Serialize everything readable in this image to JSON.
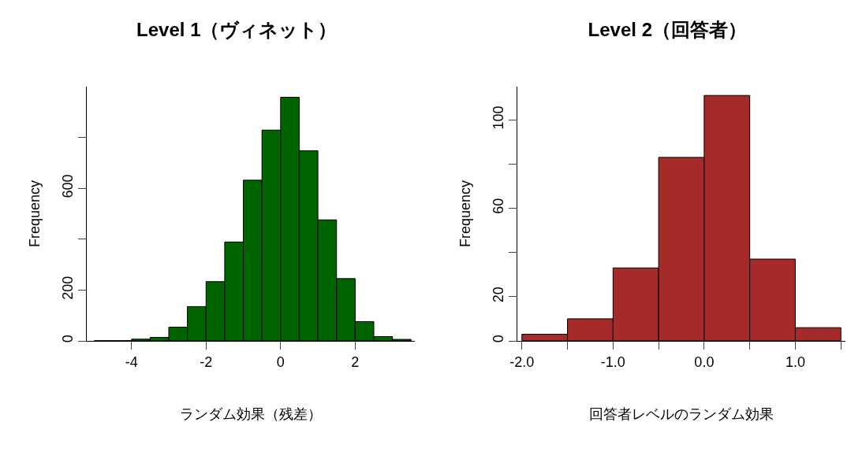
{
  "chart_data": [
    {
      "type": "histogram",
      "title": "Level 1（ヴィネット）",
      "xlabel": "ランダム効果（残差）",
      "ylabel": "Frequency",
      "color": "#006400",
      "bins": [
        -5,
        -4.5,
        -4,
        -3.5,
        -3,
        -2.5,
        -2,
        -1.5,
        -1,
        -0.5,
        0,
        0.5,
        1,
        1.5,
        2,
        2.5,
        3,
        3.5
      ],
      "values": [
        1,
        1,
        7,
        14,
        54,
        135,
        233,
        389,
        632,
        829,
        958,
        748,
        476,
        245,
        76,
        17,
        6
      ],
      "xlim": [
        -5.2,
        3.6
      ],
      "xticks": [
        -4,
        -2,
        0,
        2
      ],
      "ylim": [
        0,
        1000
      ],
      "yticks": [
        0,
        200,
        {
          "value": 400,
          "label": null
        },
        600,
        {
          "value": 800,
          "label": null
        }
      ]
    },
    {
      "type": "histogram",
      "title": "Level 2（回答者）",
      "xlabel": "回答者レベルのランダム効果",
      "ylabel": "Frequency",
      "color": "#a52a2a",
      "bins": [
        -2,
        -1.5,
        -1,
        -0.5,
        0,
        0.5,
        1,
        1.5
      ],
      "values": [
        3,
        10,
        33,
        83,
        111,
        37,
        6
      ],
      "xlim": [
        -2.05,
        1.55
      ],
      "xticks": [
        {
          "value": -2,
          "label": "-2.0"
        },
        {
          "value": -1.5,
          "label": null
        },
        {
          "value": -1,
          "label": "-1.0"
        },
        {
          "value": -0.5,
          "label": null
        },
        {
          "value": 0,
          "label": "0.0"
        },
        {
          "value": 0.5,
          "label": null
        },
        {
          "value": 1,
          "label": "1.0"
        },
        {
          "value": 1.5,
          "label": null
        }
      ],
      "ylim": [
        0,
        115
      ],
      "yticks": [
        0,
        20,
        {
          "value": 40,
          "label": null
        },
        60,
        {
          "value": 80,
          "label": null
        },
        100
      ]
    }
  ]
}
